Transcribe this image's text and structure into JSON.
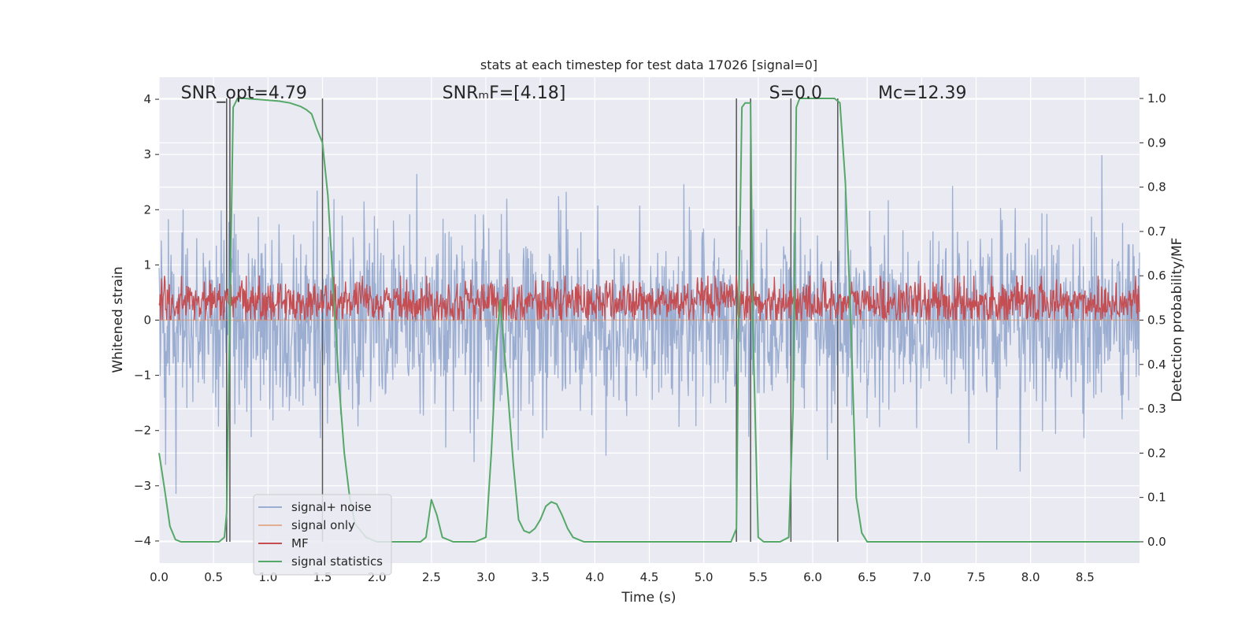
{
  "chart_data": {
    "type": "line",
    "title": "stats at each timestep for test data 17026 [signal=0]",
    "xlabel": "Time (s)",
    "ylabel": "Whitened strain",
    "y2label": "Detection probability/MF",
    "xlim": [
      0,
      9.0
    ],
    "ylim": [
      -4.4,
      4.4
    ],
    "y2lim": [
      -0.048,
      1.048
    ],
    "x_ticks": [
      0.0,
      0.5,
      1.0,
      1.5,
      2.0,
      2.5,
      3.0,
      3.5,
      4.0,
      4.5,
      5.0,
      5.5,
      6.0,
      6.5,
      7.0,
      7.5,
      8.0,
      8.5
    ],
    "x_tick_labels": [
      "0.0",
      "0.5",
      "1.0",
      "1.5",
      "2.0",
      "2.5",
      "3.0",
      "3.5",
      "4.0",
      "4.5",
      "5.0",
      "5.5",
      "6.0",
      "6.5",
      "7.0",
      "7.5",
      "8.0",
      "8.5"
    ],
    "y_ticks": [
      -4,
      -3,
      -2,
      -1,
      0,
      1,
      2,
      3,
      4
    ],
    "y_tick_labels": [
      "−4",
      "−3",
      "−2",
      "−1",
      "0",
      "1",
      "2",
      "3",
      "4"
    ],
    "y2_ticks": [
      0.0,
      0.1,
      0.2,
      0.3,
      0.4,
      0.5,
      0.6,
      0.7,
      0.8,
      0.9,
      1.0
    ],
    "y2_tick_labels": [
      "0.0",
      "0.1",
      "0.2",
      "0.3",
      "0.4",
      "0.5",
      "0.6",
      "0.7",
      "0.8",
      "0.9",
      "1.0"
    ],
    "grid": true,
    "legend_placement": "lower-left",
    "annotations": [
      {
        "text": "SNR_opt=4.79",
        "x": 0.2
      },
      {
        "text": "SNRₘF=[4.18]",
        "x": 2.6
      },
      {
        "text": "S=0.0",
        "x": 5.6
      },
      {
        "text": "Mᴄ=12.39",
        "x": 6.6
      }
    ],
    "vertical_lines_x": [
      0.62,
      0.65,
      1.5,
      5.3,
      5.43,
      5.8,
      6.23
    ],
    "series": [
      {
        "name": "signal+ noise",
        "color": "#4c72b0",
        "axis": "left",
        "kind": "noise",
        "approx_std": 0.85,
        "approx_extreme": [
          -3.9,
          3.8
        ]
      },
      {
        "name": "signal only",
        "color": "#dd8452",
        "axis": "left",
        "kind": "line",
        "x": [
          0,
          9.0
        ],
        "y": [
          0,
          0
        ]
      },
      {
        "name": "MF",
        "color": "#c44e52",
        "axis": "right",
        "kind": "noise",
        "approx_mean": 0.54,
        "approx_std": 0.025,
        "approx_range": [
          0.5,
          0.6
        ]
      },
      {
        "name": "signal statistics",
        "color": "#55a868",
        "axis": "right",
        "kind": "line",
        "x": [
          0.0,
          0.05,
          0.1,
          0.15,
          0.2,
          0.3,
          0.4,
          0.5,
          0.55,
          0.6,
          0.62,
          0.68,
          0.72,
          0.78,
          0.9,
          1.0,
          1.1,
          1.2,
          1.3,
          1.35,
          1.4,
          1.45,
          1.5,
          1.55,
          1.6,
          1.65,
          1.7,
          1.75,
          1.8,
          1.9,
          2.0,
          2.2,
          2.4,
          2.45,
          2.5,
          2.55,
          2.6,
          2.7,
          2.8,
          2.9,
          2.95,
          3.0,
          3.05,
          3.1,
          3.13,
          3.2,
          3.25,
          3.3,
          3.35,
          3.4,
          3.45,
          3.5,
          3.55,
          3.6,
          3.65,
          3.7,
          3.75,
          3.8,
          3.85,
          3.9,
          4.0,
          4.5,
          5.0,
          5.25,
          5.3,
          5.32,
          5.35,
          5.38,
          5.43,
          5.45,
          5.5,
          5.55,
          5.6,
          5.7,
          5.78,
          5.82,
          5.85,
          5.88,
          5.9,
          6.0,
          6.1,
          6.2,
          6.25,
          6.3,
          6.35,
          6.4,
          6.45,
          6.5,
          7.0,
          8.0,
          9.0
        ],
        "y": [
          0.2,
          0.12,
          0.035,
          0.005,
          0.0,
          0.0,
          0.0,
          0.0,
          0.0,
          0.01,
          0.065,
          0.98,
          1.0,
          1.0,
          0.998,
          0.996,
          0.994,
          0.99,
          0.982,
          0.975,
          0.965,
          0.93,
          0.9,
          0.78,
          0.57,
          0.36,
          0.2,
          0.1,
          0.04,
          0.01,
          0.0,
          0.0,
          0.0,
          0.01,
          0.095,
          0.06,
          0.01,
          0.0,
          0.0,
          0.0,
          0.005,
          0.01,
          0.2,
          0.45,
          0.545,
          0.34,
          0.18,
          0.05,
          0.025,
          0.02,
          0.03,
          0.05,
          0.08,
          0.09,
          0.085,
          0.06,
          0.03,
          0.01,
          0.005,
          0.0,
          0.0,
          0.0,
          0.0,
          0.0,
          0.03,
          0.5,
          0.98,
          0.99,
          0.99,
          0.5,
          0.01,
          0.0,
          0.0,
          0.0,
          0.01,
          0.3,
          0.98,
          1.0,
          1.0,
          1.0,
          1.0,
          1.0,
          0.99,
          0.81,
          0.5,
          0.1,
          0.02,
          0.0,
          0.0,
          0.0,
          0.0
        ]
      }
    ]
  }
}
